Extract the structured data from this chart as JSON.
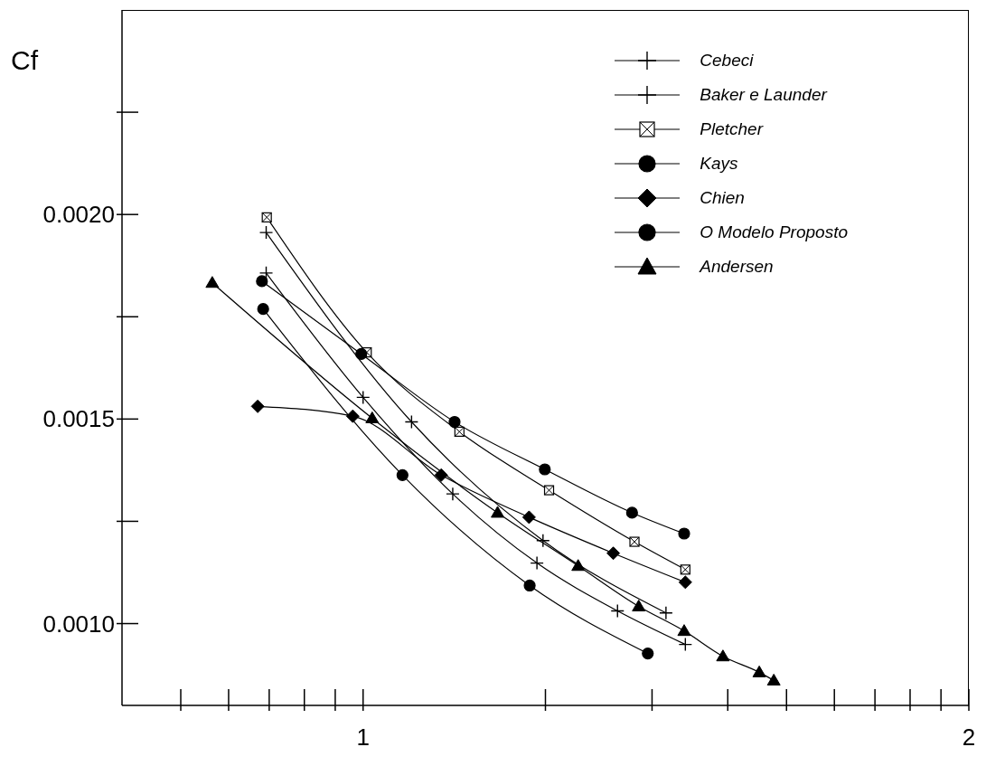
{
  "chart_data": {
    "type": "line",
    "ylabel": "Cf",
    "xlim": [
      0.602,
      2
    ],
    "ylim": [
      0.0008,
      0.0025
    ],
    "xticks": [
      {
        "value": 0.699,
        "label": null
      },
      {
        "value": 0.778,
        "label": null
      },
      {
        "value": 0.845,
        "label": null
      },
      {
        "value": 0.903,
        "label": null
      },
      {
        "value": 0.954,
        "label": null
      },
      1,
      {
        "value": 1.301,
        "label": null
      },
      {
        "value": 1.477,
        "label": null
      },
      {
        "value": 1.602,
        "label": null
      },
      {
        "value": 1.699,
        "label": null
      },
      {
        "value": 1.778,
        "label": null
      },
      {
        "value": 1.845,
        "label": null
      },
      {
        "value": 1.903,
        "label": null
      },
      {
        "value": 1.954,
        "label": null
      },
      2
    ],
    "yticks": [
      {
        "value": 0.001,
        "label": "0.0010"
      },
      {
        "value": 0.00125,
        "label": null
      },
      {
        "value": 0.0015,
        "label": "0.0015"
      },
      {
        "value": 0.00175,
        "label": null
      },
      {
        "value": 0.002,
        "label": "0.0020"
      },
      {
        "value": 0.00225,
        "label": null
      }
    ],
    "legend": "top right",
    "line_style": "solid",
    "series": [
      {
        "name": "Cebeci",
        "color": "#000000",
        "marker": "cross",
        "x": [
          0.84,
          1.0,
          1.148,
          1.287,
          1.42,
          1.532
        ],
        "values": [
          0.001857,
          0.001553,
          0.001317,
          0.001148,
          0.001031,
          0.000949
        ]
      },
      {
        "name": "Baker e Launder",
        "color": "#000000",
        "marker": "cross",
        "x": [
          0.84,
          1.08,
          1.297,
          1.5
        ],
        "values": [
          0.001956,
          0.001493,
          0.001203,
          0.001026
        ]
      },
      {
        "name": "Pletcher",
        "color": "#000000",
        "marker": "square",
        "x": [
          0.841,
          1.006,
          1.159,
          1.307,
          1.448,
          1.532
        ],
        "values": [
          0.001993,
          0.001663,
          0.001469,
          0.001326,
          0.0012,
          0.001132
        ]
      },
      {
        "name": "Kays",
        "color": "#000000",
        "marker": "circle",
        "x": [
          0.835,
          1.065,
          1.275,
          1.47
        ],
        "values": [
          0.001769,
          0.001363,
          0.001093,
          0.000927
        ]
      },
      {
        "name": "Chien",
        "color": "#000000",
        "marker": "diamond",
        "x": [
          0.826,
          0.983,
          1.129,
          1.274,
          1.413,
          1.532
        ],
        "values": [
          0.001531,
          0.001507,
          0.001363,
          0.00126,
          0.001172,
          0.001101
        ]
      },
      {
        "name": "O Modelo Proposto",
        "color": "#000000",
        "marker": "circle",
        "x": [
          0.833,
          0.997,
          1.151,
          1.3,
          1.444,
          1.53
        ],
        "values": [
          0.001837,
          0.001659,
          0.001493,
          0.001377,
          0.001271,
          0.00122
        ]
      },
      {
        "name": "Andersen",
        "color": "#000000",
        "marker": "triangle",
        "x": [
          0.751,
          1.015,
          1.222,
          1.355,
          1.455,
          1.53,
          1.594,
          1.654,
          1.678
        ],
        "values": [
          0.001833,
          0.001502,
          0.001271,
          0.001141,
          0.001042,
          0.000982,
          0.00092,
          0.000881,
          0.000861
        ]
      }
    ]
  }
}
